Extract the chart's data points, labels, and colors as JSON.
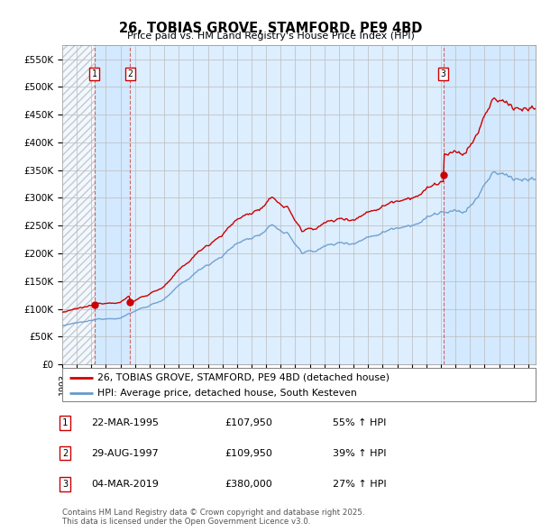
{
  "title": "26, TOBIAS GROVE, STAMFORD, PE9 4BD",
  "subtitle": "Price paid vs. HM Land Registry's House Price Index (HPI)",
  "legend_line1": "26, TOBIAS GROVE, STAMFORD, PE9 4BD (detached house)",
  "legend_line2": "HPI: Average price, detached house, South Kesteven",
  "sale_events": [
    {
      "label": "1",
      "date": "22-MAR-1995",
      "price": "£107,950",
      "hpi_info": "55% ↑ HPI",
      "year": 1995.22
    },
    {
      "label": "2",
      "date": "29-AUG-1997",
      "price": "£109,950",
      "hpi_info": "39% ↑ HPI",
      "year": 1997.66
    },
    {
      "label": "3",
      "date": "04-MAR-2019",
      "price": "£380,000",
      "hpi_info": "27% ↑ HPI",
      "year": 2019.17
    }
  ],
  "footer": "Contains HM Land Registry data © Crown copyright and database right 2025.\nThis data is licensed under the Open Government Licence v3.0.",
  "red_color": "#cc0000",
  "blue_color": "#6699cc",
  "bg_main": "#ddeeff",
  "bg_hatch_region": "#cccccc",
  "bg_owned_region": "#d0e8ff",
  "ylim": [
    0,
    575000
  ],
  "yticks": [
    0,
    50000,
    100000,
    150000,
    200000,
    250000,
    300000,
    350000,
    400000,
    450000,
    500000,
    550000
  ],
  "ytick_labels": [
    "£0",
    "£50K",
    "£100K",
    "£150K",
    "£200K",
    "£250K",
    "£300K",
    "£350K",
    "£400K",
    "£450K",
    "£500K",
    "£550K"
  ],
  "xmin": 1993.0,
  "xmax": 2025.5
}
